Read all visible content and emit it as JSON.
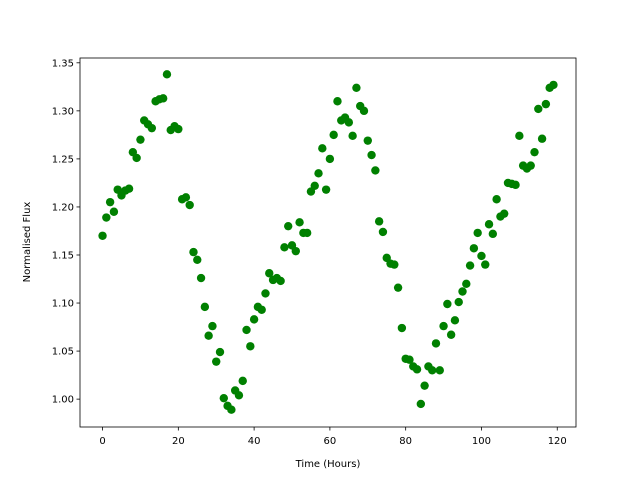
{
  "chart_data": {
    "type": "scatter",
    "x_label": "Time (Hours)",
    "y_label": "Normalised Flux",
    "color": "#008000",
    "x": [
      0,
      1,
      2,
      3,
      4,
      5,
      6,
      7,
      8,
      9,
      10,
      11,
      12,
      13,
      14,
      15,
      16,
      17,
      18,
      19,
      20,
      21,
      22,
      23,
      24,
      25,
      26,
      27,
      28,
      29,
      30,
      31,
      32,
      33,
      34,
      35,
      36,
      37,
      38,
      39,
      40,
      41,
      42,
      43,
      44,
      45,
      46,
      47,
      48,
      49,
      50,
      51,
      52,
      53,
      54,
      55,
      56,
      57,
      58,
      59,
      60,
      61,
      62,
      63,
      64,
      65,
      66,
      67,
      68,
      69,
      70,
      71,
      72,
      73,
      74,
      75,
      76,
      77,
      78,
      79,
      80,
      81,
      82,
      83,
      84,
      85,
      86,
      87,
      88,
      89,
      90,
      91,
      92,
      93,
      94,
      95,
      96,
      97,
      98,
      99,
      100,
      101,
      102,
      103,
      104,
      105,
      106,
      107,
      108,
      109,
      110,
      111,
      112,
      113,
      114,
      115,
      116,
      117,
      118,
      119
    ],
    "values": [
      1.17,
      1.189,
      1.205,
      1.195,
      1.218,
      1.212,
      1.217,
      1.219,
      1.257,
      1.251,
      1.27,
      1.29,
      1.286,
      1.282,
      1.31,
      1.312,
      1.313,
      1.338,
      1.28,
      1.284,
      1.281,
      1.208,
      1.21,
      1.202,
      1.153,
      1.145,
      1.126,
      1.096,
      1.066,
      1.076,
      1.039,
      1.049,
      1.001,
      0.993,
      0.989,
      1.009,
      1.004,
      1.019,
      1.072,
      1.055,
      1.083,
      1.096,
      1.093,
      1.11,
      1.131,
      1.124,
      1.126,
      1.123,
      1.158,
      1.18,
      1.16,
      1.154,
      1.184,
      1.173,
      1.173,
      1.216,
      1.222,
      1.235,
      1.261,
      1.218,
      1.25,
      1.275,
      1.31,
      1.29,
      1.293,
      1.288,
      1.274,
      1.324,
      1.305,
      1.3,
      1.269,
      1.254,
      1.238,
      1.185,
      1.174,
      1.147,
      1.141,
      1.14,
      1.116,
      1.074,
      1.042,
      1.041,
      1.034,
      1.031,
      0.995,
      1.014,
      1.034,
      1.03,
      1.058,
      1.03,
      1.076,
      1.099,
      1.067,
      1.082,
      1.101,
      1.112,
      1.12,
      1.139,
      1.157,
      1.173,
      1.149,
      1.14,
      1.182,
      1.172,
      1.208,
      1.19,
      1.193,
      1.225,
      1.224,
      1.223,
      1.274,
      1.243,
      1.24,
      1.243,
      1.257,
      1.302,
      1.271,
      1.307,
      1.324,
      1.327
    ],
    "xlim": [
      -5.95,
      124.95
    ],
    "ylim": [
      0.971,
      1.355
    ],
    "xticks": [
      0,
      20,
      40,
      60,
      80,
      100,
      120
    ],
    "yticks": [
      {
        "value": 1.0,
        "label": "1.00"
      },
      1.05,
      {
        "value": 1.1,
        "label": "1.10"
      },
      1.15,
      {
        "value": 1.2,
        "label": "1.20"
      },
      1.25,
      {
        "value": 1.3,
        "label": "1.30"
      },
      1.35
    ]
  }
}
